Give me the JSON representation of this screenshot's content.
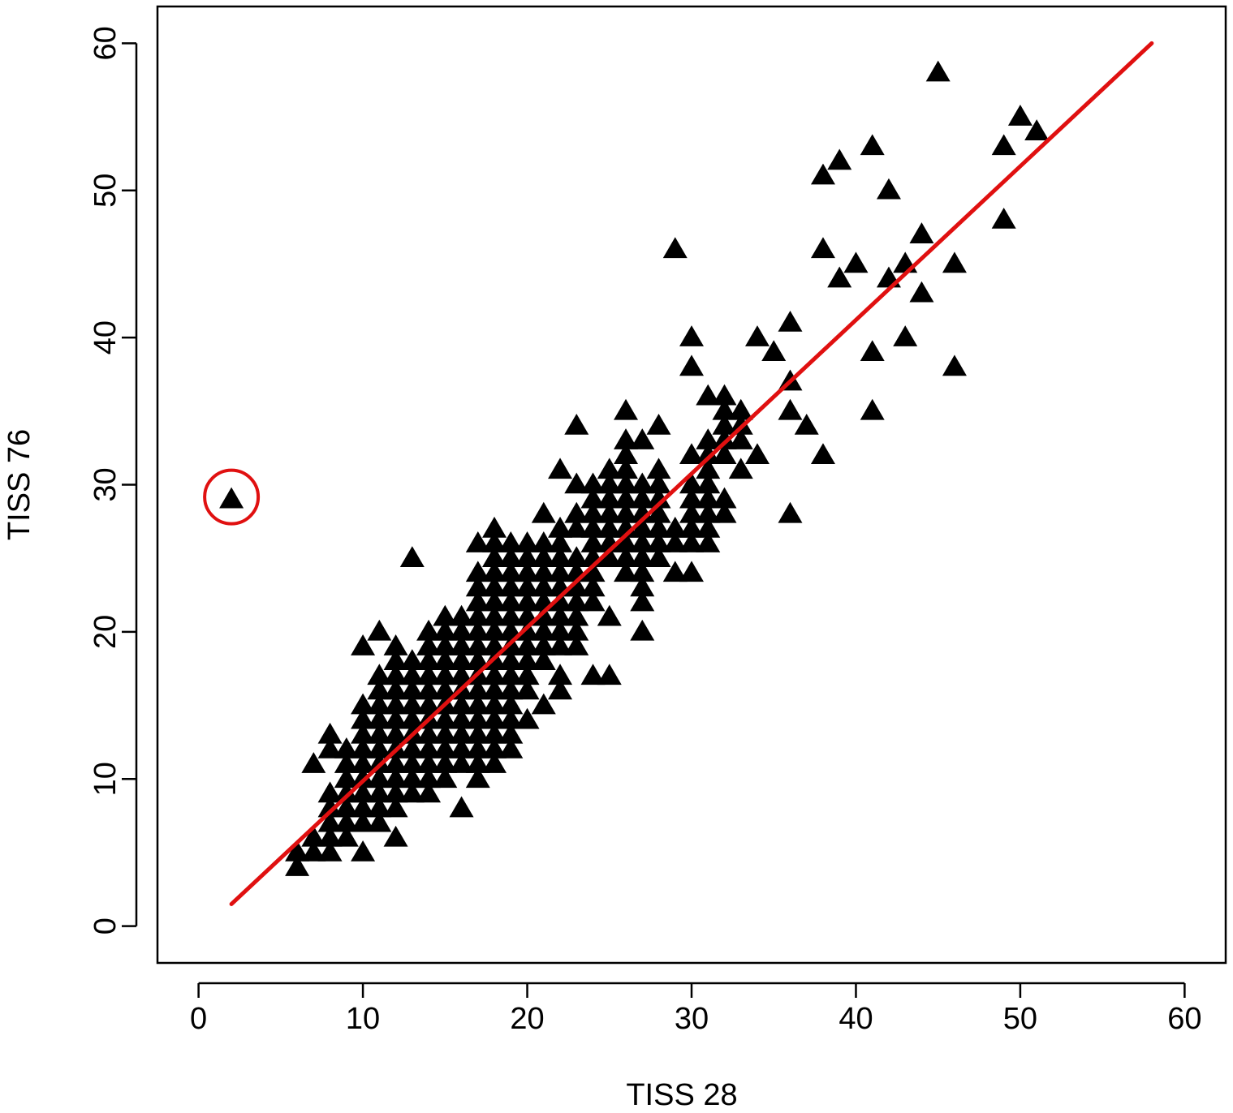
{
  "chart_data": {
    "type": "scatter",
    "title": "",
    "xlabel": "TISS 28",
    "ylabel": "TISS 76",
    "xlim": [
      -2.5,
      62.5
    ],
    "ylim": [
      -2.5,
      62.5
    ],
    "x_ticks": [
      0,
      10,
      20,
      30,
      40,
      50,
      60
    ],
    "y_ticks": [
      0,
      10,
      20,
      30,
      40,
      50,
      60
    ],
    "grid": false,
    "legend": "none",
    "marker": "filled-triangle",
    "marker_color": "#000000",
    "line_color": "#e01010",
    "highlight_color": "#e01010",
    "regression_line": {
      "x": [
        2,
        58
      ],
      "y": [
        1.5,
        60
      ]
    },
    "highlighted_point": {
      "x": 2,
      "y": 29
    },
    "points": [
      [
        2,
        29
      ],
      [
        6,
        4
      ],
      [
        6,
        5
      ],
      [
        7,
        5
      ],
      [
        7,
        6
      ],
      [
        7,
        11
      ],
      [
        8,
        5
      ],
      [
        8,
        6
      ],
      [
        8,
        7
      ],
      [
        8,
        8
      ],
      [
        8,
        9
      ],
      [
        8,
        12
      ],
      [
        8,
        13
      ],
      [
        9,
        6
      ],
      [
        9,
        7
      ],
      [
        9,
        8
      ],
      [
        9,
        9
      ],
      [
        9,
        10
      ],
      [
        9,
        11
      ],
      [
        9,
        12
      ],
      [
        10,
        5
      ],
      [
        10,
        7
      ],
      [
        10,
        8
      ],
      [
        10,
        9
      ],
      [
        10,
        10
      ],
      [
        10,
        11
      ],
      [
        10,
        12
      ],
      [
        10,
        13
      ],
      [
        10,
        14
      ],
      [
        10,
        15
      ],
      [
        10,
        19
      ],
      [
        11,
        7
      ],
      [
        11,
        8
      ],
      [
        11,
        9
      ],
      [
        11,
        10
      ],
      [
        11,
        11
      ],
      [
        11,
        12
      ],
      [
        11,
        13
      ],
      [
        11,
        14
      ],
      [
        11,
        15
      ],
      [
        11,
        16
      ],
      [
        11,
        17
      ],
      [
        11,
        20
      ],
      [
        12,
        6
      ],
      [
        12,
        8
      ],
      [
        12,
        9
      ],
      [
        12,
        10
      ],
      [
        12,
        11
      ],
      [
        12,
        12
      ],
      [
        12,
        13
      ],
      [
        12,
        14
      ],
      [
        12,
        15
      ],
      [
        12,
        16
      ],
      [
        12,
        17
      ],
      [
        12,
        18
      ],
      [
        12,
        19
      ],
      [
        13,
        9
      ],
      [
        13,
        10
      ],
      [
        13,
        11
      ],
      [
        13,
        12
      ],
      [
        13,
        13
      ],
      [
        13,
        14
      ],
      [
        13,
        15
      ],
      [
        13,
        16
      ],
      [
        13,
        17
      ],
      [
        13,
        18
      ],
      [
        13,
        25
      ],
      [
        14,
        9
      ],
      [
        14,
        10
      ],
      [
        14,
        11
      ],
      [
        14,
        12
      ],
      [
        14,
        13
      ],
      [
        14,
        14
      ],
      [
        14,
        15
      ],
      [
        14,
        16
      ],
      [
        14,
        17
      ],
      [
        14,
        18
      ],
      [
        14,
        19
      ],
      [
        14,
        20
      ],
      [
        15,
        10
      ],
      [
        15,
        11
      ],
      [
        15,
        12
      ],
      [
        15,
        13
      ],
      [
        15,
        14
      ],
      [
        15,
        15
      ],
      [
        15,
        16
      ],
      [
        15,
        17
      ],
      [
        15,
        18
      ],
      [
        15,
        19
      ],
      [
        15,
        20
      ],
      [
        15,
        21
      ],
      [
        16,
        8
      ],
      [
        16,
        11
      ],
      [
        16,
        12
      ],
      [
        16,
        13
      ],
      [
        16,
        14
      ],
      [
        16,
        15
      ],
      [
        16,
        16
      ],
      [
        16,
        17
      ],
      [
        16,
        18
      ],
      [
        16,
        19
      ],
      [
        16,
        20
      ],
      [
        16,
        21
      ],
      [
        17,
        10
      ],
      [
        17,
        11
      ],
      [
        17,
        12
      ],
      [
        17,
        13
      ],
      [
        17,
        14
      ],
      [
        17,
        15
      ],
      [
        17,
        16
      ],
      [
        17,
        17
      ],
      [
        17,
        18
      ],
      [
        17,
        19
      ],
      [
        17,
        20
      ],
      [
        17,
        21
      ],
      [
        17,
        22
      ],
      [
        17,
        23
      ],
      [
        17,
        24
      ],
      [
        17,
        26
      ],
      [
        18,
        11
      ],
      [
        18,
        12
      ],
      [
        18,
        13
      ],
      [
        18,
        14
      ],
      [
        18,
        15
      ],
      [
        18,
        16
      ],
      [
        18,
        17
      ],
      [
        18,
        18
      ],
      [
        18,
        19
      ],
      [
        18,
        20
      ],
      [
        18,
        21
      ],
      [
        18,
        22
      ],
      [
        18,
        23
      ],
      [
        18,
        24
      ],
      [
        18,
        25
      ],
      [
        18,
        26
      ],
      [
        18,
        27
      ],
      [
        19,
        12
      ],
      [
        19,
        13
      ],
      [
        19,
        14
      ],
      [
        19,
        15
      ],
      [
        19,
        16
      ],
      [
        19,
        17
      ],
      [
        19,
        18
      ],
      [
        19,
        19
      ],
      [
        19,
        20
      ],
      [
        19,
        21
      ],
      [
        19,
        22
      ],
      [
        19,
        23
      ],
      [
        19,
        24
      ],
      [
        19,
        25
      ],
      [
        19,
        26
      ],
      [
        20,
        14
      ],
      [
        20,
        16
      ],
      [
        20,
        17
      ],
      [
        20,
        18
      ],
      [
        20,
        19
      ],
      [
        20,
        20
      ],
      [
        20,
        21
      ],
      [
        20,
        22
      ],
      [
        20,
        23
      ],
      [
        20,
        24
      ],
      [
        20,
        25
      ],
      [
        20,
        26
      ],
      [
        21,
        15
      ],
      [
        21,
        18
      ],
      [
        21,
        19
      ],
      [
        21,
        20
      ],
      [
        21,
        21
      ],
      [
        21,
        22
      ],
      [
        21,
        23
      ],
      [
        21,
        24
      ],
      [
        21,
        25
      ],
      [
        21,
        26
      ],
      [
        21,
        28
      ],
      [
        22,
        16
      ],
      [
        22,
        17
      ],
      [
        22,
        19
      ],
      [
        22,
        20
      ],
      [
        22,
        21
      ],
      [
        22,
        22
      ],
      [
        22,
        23
      ],
      [
        22,
        24
      ],
      [
        22,
        25
      ],
      [
        22,
        26
      ],
      [
        22,
        27
      ],
      [
        22,
        31
      ],
      [
        23,
        19
      ],
      [
        23,
        20
      ],
      [
        23,
        21
      ],
      [
        23,
        22
      ],
      [
        23,
        23
      ],
      [
        23,
        24
      ],
      [
        23,
        25
      ],
      [
        23,
        27
      ],
      [
        23,
        28
      ],
      [
        23,
        30
      ],
      [
        23,
        34
      ],
      [
        24,
        17
      ],
      [
        24,
        22
      ],
      [
        24,
        23
      ],
      [
        24,
        24
      ],
      [
        24,
        25
      ],
      [
        24,
        26
      ],
      [
        24,
        27
      ],
      [
        24,
        28
      ],
      [
        24,
        29
      ],
      [
        24,
        30
      ],
      [
        25,
        17
      ],
      [
        25,
        21
      ],
      [
        25,
        25
      ],
      [
        25,
        26
      ],
      [
        25,
        27
      ],
      [
        25,
        28
      ],
      [
        25,
        29
      ],
      [
        25,
        30
      ],
      [
        25,
        31
      ],
      [
        26,
        24
      ],
      [
        26,
        25
      ],
      [
        26,
        26
      ],
      [
        26,
        27
      ],
      [
        26,
        28
      ],
      [
        26,
        29
      ],
      [
        26,
        30
      ],
      [
        26,
        31
      ],
      [
        26,
        32
      ],
      [
        26,
        33
      ],
      [
        26,
        35
      ],
      [
        27,
        20
      ],
      [
        27,
        22
      ],
      [
        27,
        23
      ],
      [
        27,
        24
      ],
      [
        27,
        25
      ],
      [
        27,
        26
      ],
      [
        27,
        27
      ],
      [
        27,
        28
      ],
      [
        27,
        29
      ],
      [
        27,
        30
      ],
      [
        27,
        33
      ],
      [
        28,
        25
      ],
      [
        28,
        26
      ],
      [
        28,
        27
      ],
      [
        28,
        28
      ],
      [
        28,
        29
      ],
      [
        28,
        30
      ],
      [
        28,
        31
      ],
      [
        28,
        34
      ],
      [
        29,
        24
      ],
      [
        29,
        26
      ],
      [
        29,
        27
      ],
      [
        29,
        46
      ],
      [
        30,
        24
      ],
      [
        30,
        26
      ],
      [
        30,
        27
      ],
      [
        30,
        28
      ],
      [
        30,
        29
      ],
      [
        30,
        30
      ],
      [
        30,
        32
      ],
      [
        30,
        38
      ],
      [
        30,
        40
      ],
      [
        31,
        26
      ],
      [
        31,
        27
      ],
      [
        31,
        28
      ],
      [
        31,
        29
      ],
      [
        31,
        30
      ],
      [
        31,
        31
      ],
      [
        31,
        32
      ],
      [
        31,
        33
      ],
      [
        31,
        36
      ],
      [
        32,
        28
      ],
      [
        32,
        29
      ],
      [
        32,
        32
      ],
      [
        32,
        33
      ],
      [
        32,
        34
      ],
      [
        32,
        35
      ],
      [
        32,
        36
      ],
      [
        33,
        31
      ],
      [
        33,
        33
      ],
      [
        33,
        34
      ],
      [
        33,
        35
      ],
      [
        34,
        32
      ],
      [
        34,
        40
      ],
      [
        35,
        39
      ],
      [
        36,
        28
      ],
      [
        36,
        35
      ],
      [
        36,
        37
      ],
      [
        36,
        41
      ],
      [
        37,
        34
      ],
      [
        38,
        32
      ],
      [
        38,
        46
      ],
      [
        38,
        51
      ],
      [
        39,
        44
      ],
      [
        39,
        52
      ],
      [
        40,
        45
      ],
      [
        41,
        35
      ],
      [
        41,
        39
      ],
      [
        41,
        53
      ],
      [
        42,
        44
      ],
      [
        42,
        50
      ],
      [
        43,
        40
      ],
      [
        43,
        45
      ],
      [
        44,
        43
      ],
      [
        44,
        47
      ],
      [
        45,
        58
      ],
      [
        46,
        38
      ],
      [
        46,
        45
      ],
      [
        49,
        48
      ],
      [
        49,
        53
      ],
      [
        50,
        55
      ],
      [
        51,
        54
      ]
    ]
  }
}
